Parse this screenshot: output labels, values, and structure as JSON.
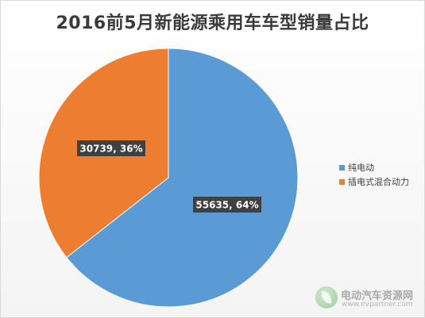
{
  "chart_data": {
    "type": "pie",
    "title": "2016前5月新能源乘用车车型销量占比",
    "slices": [
      {
        "label": "纯电动",
        "value": 55635,
        "percent": "64%",
        "color": "#5b9bd5",
        "data_label": "55635, 64%"
      },
      {
        "label": "插电式混合动力",
        "value": 30739,
        "percent": "36%",
        "color": "#ed7d31",
        "data_label": "30739, 36%"
      }
    ],
    "legend_position": "right"
  },
  "watermark": {
    "name": "电动汽车资源网",
    "url": "www.evpartner.com"
  }
}
